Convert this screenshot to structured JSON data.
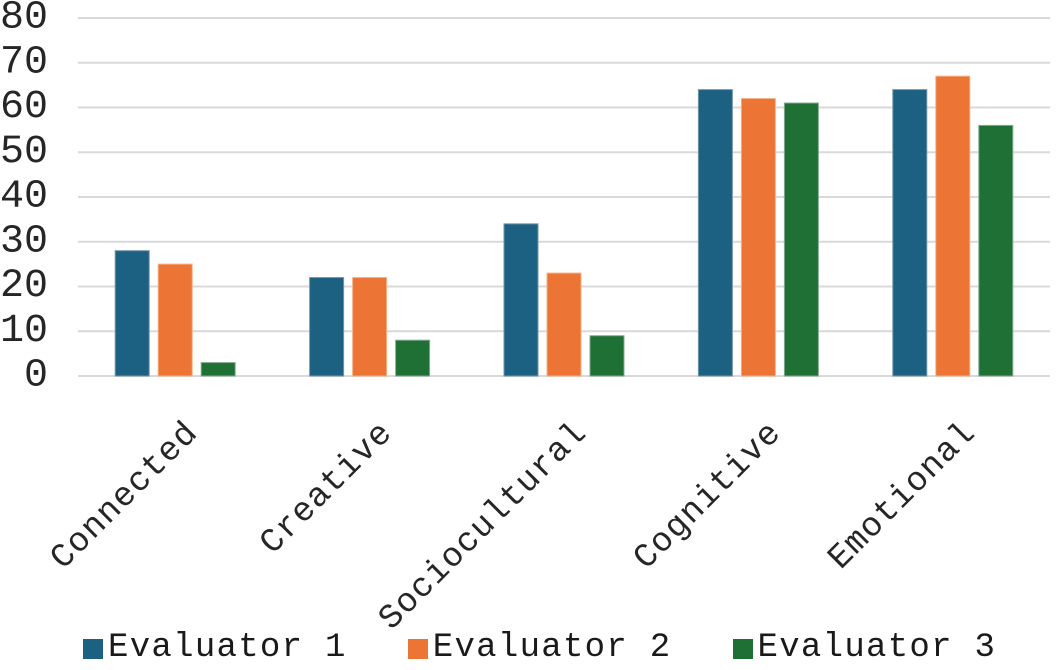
{
  "chart_data": {
    "type": "bar",
    "title": "",
    "xlabel": "",
    "ylabel": "",
    "categories": [
      "Connected",
      "Creative",
      "Sociocultural",
      "Cognitive",
      "Emotional"
    ],
    "series": [
      {
        "name": "Evaluator 1",
        "color": "#1c6082",
        "edge_color": "#7396a8",
        "values": [
          28,
          22,
          34,
          64,
          64
        ]
      },
      {
        "name": "Evaluator 2",
        "color": "#ec7434",
        "edge_color": "#f4b183",
        "values": [
          25,
          22,
          23,
          62,
          67
        ]
      },
      {
        "name": "Evaluator 3",
        "color": "#1e7035",
        "edge_color": "#83a98f",
        "values": [
          3,
          8,
          9,
          61,
          56
        ]
      }
    ],
    "ylim": [
      0,
      80
    ],
    "y_ticks": [
      0,
      10,
      20,
      30,
      40,
      50,
      60,
      70,
      80
    ],
    "grid": true,
    "gridline_color": "#d9d9d9",
    "text_color": "#262626",
    "legend_position": "bottom",
    "legend_labels": [
      "Evaluator 1",
      "Evaluator 2",
      "Evaluator 3"
    ]
  }
}
